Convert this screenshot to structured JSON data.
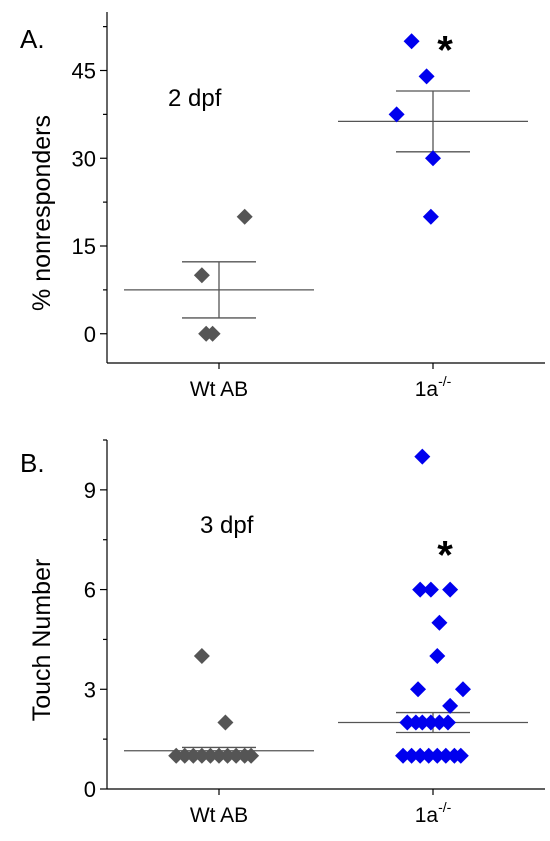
{
  "chart_data": [
    {
      "type": "scatter",
      "panel_label": "A.",
      "condition_label": "2 dpf",
      "ylabel": "% nonresponders",
      "ylim": [
        -5,
        55
      ],
      "yticks": [
        0,
        15,
        30,
        45
      ],
      "categories": [
        "Wt AB",
        "1a"
      ],
      "category_superscripts": [
        "",
        "-/-"
      ],
      "significance_marker": "*",
      "significance_category": "1a",
      "significance_y": 50,
      "series": [
        {
          "category": "Wt AB",
          "color": "#555555",
          "points": [
            {
              "offset": 0.12,
              "y": 20
            },
            {
              "offset": -0.08,
              "y": 10
            },
            {
              "offset": -0.06,
              "y": 0
            },
            {
              "offset": -0.03,
              "y": 0
            }
          ],
          "mean": 7.5,
          "sem_low": 2.7,
          "sem_high": 12.3
        },
        {
          "category": "1a",
          "color": "#0000ee",
          "points": [
            {
              "offset": -0.1,
              "y": 50
            },
            {
              "offset": -0.03,
              "y": 44
            },
            {
              "offset": -0.17,
              "y": 37.5
            },
            {
              "offset": 0.0,
              "y": 30
            },
            {
              "offset": -0.01,
              "y": 20
            }
          ],
          "mean": 36.3,
          "sem_low": 31.1,
          "sem_high": 41.5
        }
      ]
    },
    {
      "type": "scatter",
      "panel_label": "B.",
      "condition_label": "3 dpf",
      "ylabel": "Touch Number",
      "ylim": [
        0,
        10.5
      ],
      "yticks": [
        0,
        3,
        6,
        9
      ],
      "categories": [
        "Wt AB",
        "1a"
      ],
      "category_superscripts": [
        "",
        "-/-"
      ],
      "significance_marker": "*",
      "significance_category": "1a",
      "significance_y": 7.3,
      "series": [
        {
          "category": "Wt AB",
          "color": "#555555",
          "points": [
            {
              "offset": -0.08,
              "y": 4
            },
            {
              "offset": 0.03,
              "y": 2
            },
            {
              "offset": -0.2,
              "y": 1
            },
            {
              "offset": -0.16,
              "y": 1
            },
            {
              "offset": -0.12,
              "y": 1
            },
            {
              "offset": -0.08,
              "y": 1
            },
            {
              "offset": -0.04,
              "y": 1
            },
            {
              "offset": 0.0,
              "y": 1
            },
            {
              "offset": 0.04,
              "y": 1
            },
            {
              "offset": 0.08,
              "y": 1
            },
            {
              "offset": 0.12,
              "y": 1
            },
            {
              "offset": 0.15,
              "y": 1
            }
          ],
          "mean": 1.15,
          "sem_low": 1.05,
          "sem_high": 1.25
        },
        {
          "category": "1a",
          "color": "#0000ee",
          "points": [
            {
              "offset": -0.05,
              "y": 10
            },
            {
              "offset": -0.06,
              "y": 6
            },
            {
              "offset": -0.01,
              "y": 6
            },
            {
              "offset": 0.08,
              "y": 6
            },
            {
              "offset": 0.03,
              "y": 5
            },
            {
              "offset": 0.02,
              "y": 4
            },
            {
              "offset": -0.07,
              "y": 3
            },
            {
              "offset": 0.14,
              "y": 3
            },
            {
              "offset": 0.08,
              "y": 2.5
            },
            {
              "offset": -0.12,
              "y": 2
            },
            {
              "offset": -0.08,
              "y": 2
            },
            {
              "offset": -0.05,
              "y": 2
            },
            {
              "offset": -0.01,
              "y": 2
            },
            {
              "offset": 0.03,
              "y": 2
            },
            {
              "offset": 0.07,
              "y": 2
            },
            {
              "offset": -0.14,
              "y": 1
            },
            {
              "offset": -0.1,
              "y": 1
            },
            {
              "offset": -0.06,
              "y": 1
            },
            {
              "offset": -0.02,
              "y": 1
            },
            {
              "offset": 0.02,
              "y": 1
            },
            {
              "offset": 0.06,
              "y": 1
            },
            {
              "offset": 0.1,
              "y": 1
            },
            {
              "offset": 0.13,
              "y": 1
            }
          ],
          "mean": 2.0,
          "sem_low": 1.7,
          "sem_high": 2.3
        }
      ]
    }
  ]
}
